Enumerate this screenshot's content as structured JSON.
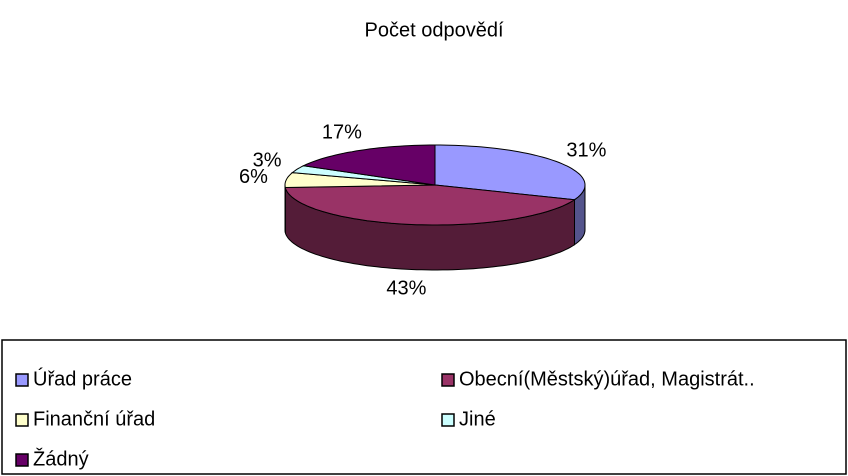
{
  "chart_data": {
    "type": "pie3d",
    "title": "Počet odpovědí",
    "categories": [
      "Úřad práce",
      "Obecní(Městský)úřad, Magistrát..",
      "Finanční úřad",
      "Jiné",
      "Žádný"
    ],
    "values": [
      31,
      43,
      6,
      3,
      17
    ],
    "value_labels": [
      "31%",
      "43%",
      "6%",
      "3%",
      "17%"
    ],
    "colors": [
      "#9999ff",
      "#993366",
      "#ffffcc",
      "#ccffff",
      "#660066"
    ],
    "legend": "bottom"
  }
}
